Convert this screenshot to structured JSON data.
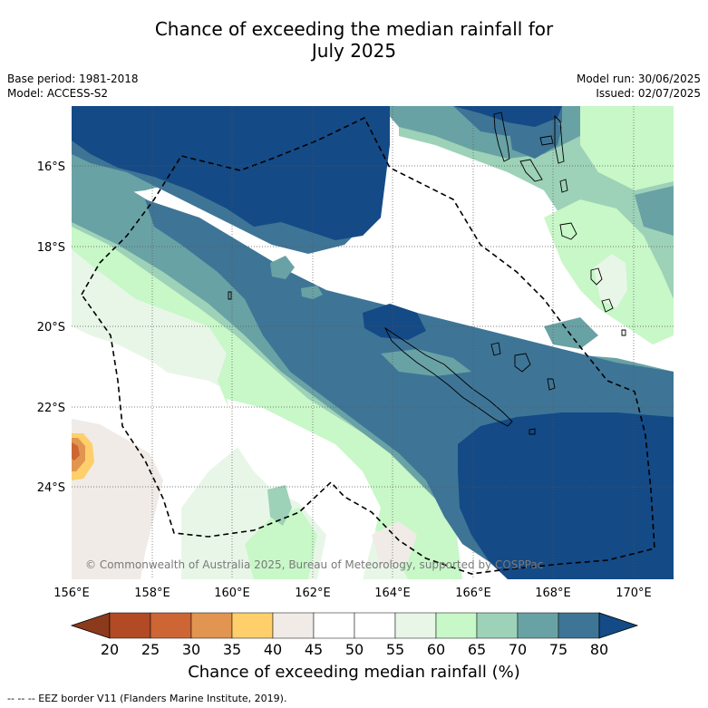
{
  "title_line1": "Chance of exceeding the median rainfall for",
  "title_line2": "July 2025",
  "base_period": "Base period: 1981-2018",
  "model": "Model: ACCESS-S2",
  "model_run": "Model run: 30/06/2025",
  "issued": "Issued: 02/07/2025",
  "copyright": "© Commonwealth of Australia 2025, Bureau of Meteorology, supported by COSPPac",
  "lat_labels": [
    "16°S",
    "18°S",
    "20°S",
    "22°S",
    "24°S"
  ],
  "lon_labels": [
    "156°E",
    "158°E",
    "160°E",
    "162°E",
    "164°E",
    "166°E",
    "168°E",
    "170°E"
  ],
  "colorbar": {
    "ticks": [
      "20",
      "25",
      "30",
      "35",
      "40",
      "45",
      "50",
      "55",
      "60",
      "65",
      "70",
      "75",
      "80"
    ],
    "colors": [
      "#8c3a1c",
      "#b14a25",
      "#cd6535",
      "#e19550",
      "#fecf6a",
      "#f0ebe7",
      "#ffffff",
      "#ffffff",
      "#e8f6e8",
      "#c8f7c8",
      "#9dd2b8",
      "#69a2a5",
      "#3e7596",
      "#144a86"
    ],
    "label": "Chance of exceeding median rainfall (%)"
  },
  "footer": "--  --  -- EEZ border V11 (Flanders Marine Institute, 2019)."
}
